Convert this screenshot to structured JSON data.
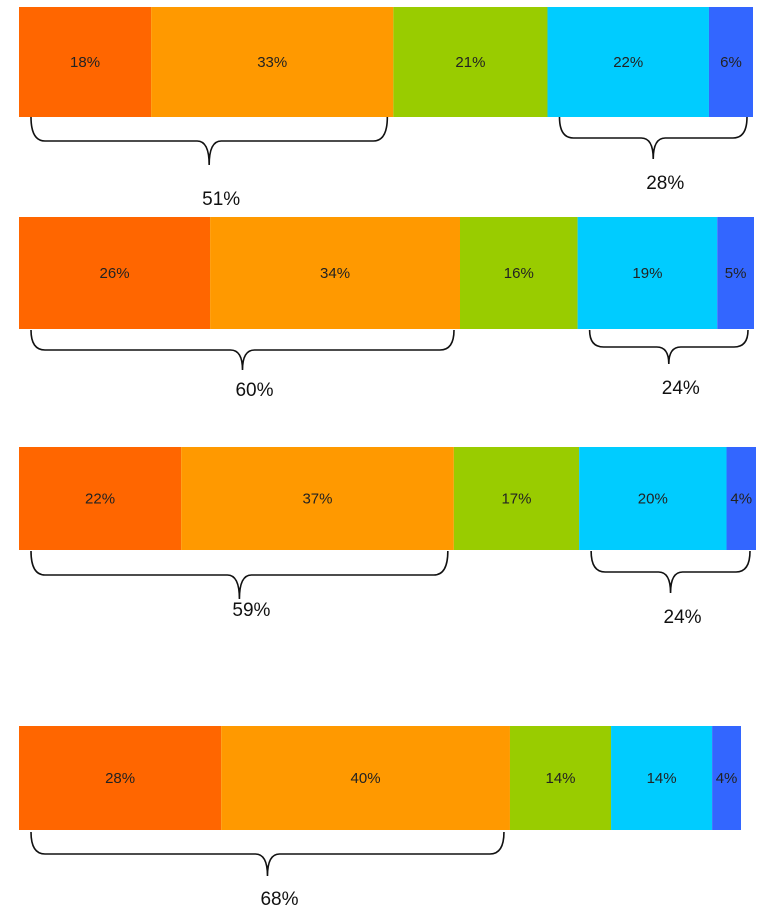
{
  "chart_data": {
    "type": "bar",
    "orientation": "horizontal",
    "stacked": true,
    "grid": false,
    "legend": "none",
    "colors": [
      "#ff6600",
      "#ff9900",
      "#99cc00",
      "#00ccff",
      "#3366ff"
    ],
    "rows": [
      {
        "values": [
          18,
          33,
          21,
          22,
          6
        ],
        "labels": [
          "18%",
          "33%",
          "21%",
          "22%",
          "6%"
        ],
        "braces": [
          {
            "from": 0,
            "to": 1,
            "label": "51%"
          },
          {
            "from": 3,
            "to": 4,
            "label": "28%"
          }
        ]
      },
      {
        "values": [
          26,
          34,
          16,
          19,
          5
        ],
        "labels": [
          "26%",
          "34%",
          "16%",
          "19%",
          "5%"
        ],
        "braces": [
          {
            "from": 0,
            "to": 1,
            "label": "60%"
          },
          {
            "from": 3,
            "to": 4,
            "label": "24%"
          }
        ]
      },
      {
        "values": [
          22,
          37,
          17,
          20,
          4
        ],
        "labels": [
          "22%",
          "37%",
          "17%",
          "20%",
          "4%"
        ],
        "braces": [
          {
            "from": 0,
            "to": 1,
            "label": "59%"
          },
          {
            "from": 3,
            "to": 4,
            "label": "24%"
          }
        ]
      },
      {
        "values": [
          28,
          40,
          14,
          14,
          4
        ],
        "labels": [
          "28%",
          "40%",
          "14%",
          "14%",
          "4%"
        ],
        "braces": [
          {
            "from": 0,
            "to": 1,
            "label": "68%"
          }
        ]
      }
    ]
  }
}
